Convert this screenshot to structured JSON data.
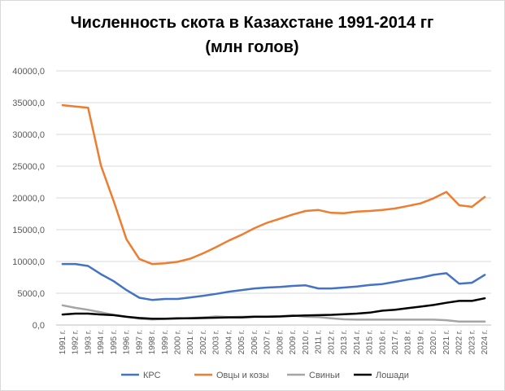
{
  "chart_data": {
    "type": "line",
    "title": "Численность скота в Казахстане 1991-2014  гг",
    "subtitle": "(млн голов)",
    "xlabel": "",
    "ylabel": "",
    "ylim": [
      0,
      40000
    ],
    "y_ticks": [
      "0,0",
      "5000,0",
      "10000,0",
      "15000,0",
      "20000,0",
      "25000,0",
      "30000,0",
      "35000,0",
      "40000,0"
    ],
    "y_tick_values": [
      0,
      5000,
      10000,
      15000,
      20000,
      25000,
      30000,
      35000,
      40000
    ],
    "grid": true,
    "legend_position": "bottom",
    "categories": [
      "1991 г.",
      "1992 г.",
      "1993 г.",
      "1994 г.",
      "1995 г.",
      "1996 г.",
      "1997 г.",
      "1998 г.",
      "1999 г.",
      "2000 г.",
      "2001 г.",
      "2002 г.",
      "2003 г.",
      "2004 г.",
      "2005 г.",
      "2006 г.",
      "2007 г.",
      "2008 г.",
      "2009 г.",
      "2010 г.",
      "2011 г.",
      "2012 г.",
      "2013 г.",
      "2014 г.",
      "2015 г.",
      "2016 г.",
      "2017 г.",
      "2018 г.",
      "2019 г.",
      "2020 г.",
      "2021 г.",
      "2022 г.",
      "2023 г.",
      "2024 г."
    ],
    "series": [
      {
        "name": "КРС",
        "color": "#4472c4",
        "values": [
          9600,
          9600,
          9300,
          8000,
          6900,
          5500,
          4300,
          3950,
          4100,
          4100,
          4350,
          4600,
          4900,
          5250,
          5500,
          5750,
          5900,
          6000,
          6150,
          6250,
          5750,
          5750,
          5900,
          6050,
          6300,
          6450,
          6800,
          7150,
          7450,
          7900,
          8150,
          6500,
          6650,
          7900
        ]
      },
      {
        "name": "Овцы и козы",
        "color": "#ed7d31",
        "values": [
          34600,
          34400,
          34200,
          25100,
          19500,
          13500,
          10400,
          9600,
          9700,
          9950,
          10450,
          11300,
          12250,
          13300,
          14200,
          15250,
          16100,
          16750,
          17400,
          17950,
          18100,
          17650,
          17600,
          17850,
          17950,
          18100,
          18350,
          18750,
          19150,
          19950,
          20950,
          18850,
          18600,
          20150
        ]
      },
      {
        "name": "Свиньи",
        "color": "#a5a5a5",
        "values": [
          3100,
          2700,
          2400,
          2000,
          1600,
          1300,
          1000,
          880,
          960,
          1000,
          1100,
          1200,
          1350,
          1250,
          1300,
          1350,
          1350,
          1400,
          1500,
          1300,
          1250,
          1050,
          900,
          850,
          850,
          850,
          850,
          850,
          850,
          850,
          750,
          550,
          550,
          550
        ]
      },
      {
        "name": "Лошади",
        "color": "#000000",
        "values": [
          1650,
          1800,
          1800,
          1650,
          1550,
          1300,
          1100,
          1000,
          1000,
          1050,
          1050,
          1100,
          1150,
          1200,
          1200,
          1300,
          1300,
          1350,
          1450,
          1500,
          1550,
          1600,
          1700,
          1800,
          1950,
          2250,
          2400,
          2650,
          2900,
          3150,
          3500,
          3800,
          3800,
          4200
        ]
      }
    ]
  }
}
